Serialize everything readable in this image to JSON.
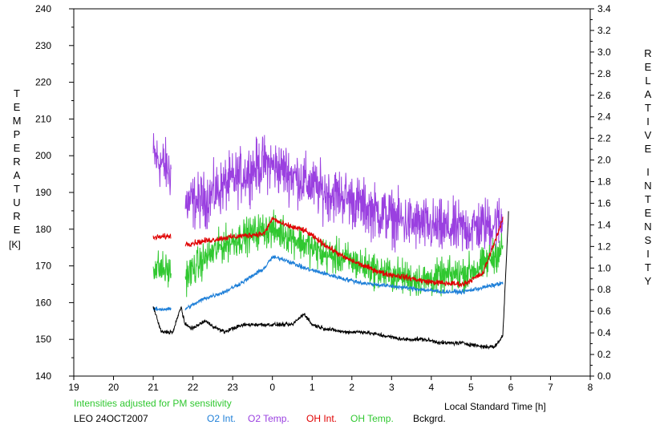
{
  "chart_data": {
    "type": "line",
    "left_axis_label_letters": "TEMPERATURE",
    "left_axis_unit": "[K]",
    "right_axis_label_letters_1": "RELATIVE",
    "right_axis_label_letters_2": "INTENSITY",
    "xlabel": "Local Standard Time [h]",
    "note": "Intensities adjusted for PM sensitivity",
    "station": "LEO 24OCT2007",
    "xlim": [
      19,
      32
    ],
    "x_tick_labels": [
      "19",
      "20",
      "21",
      "22",
      "23",
      "0",
      "1",
      "2",
      "3",
      "4",
      "5",
      "6",
      "7",
      "8"
    ],
    "ylim_left": [
      140,
      240
    ],
    "y_left_ticks": [
      "140",
      "150",
      "160",
      "170",
      "180",
      "190",
      "200",
      "210",
      "220",
      "230",
      "240"
    ],
    "ylim_right": [
      0,
      3.4
    ],
    "y_right_ticks": [
      "0.0",
      "0.2",
      "0.4",
      "0.6",
      "0.8",
      "1.0",
      "1.2",
      "1.4",
      "1.6",
      "1.8",
      "2.0",
      "2.2",
      "2.4",
      "2.6",
      "2.8",
      "3.0",
      "3.2",
      "3.4"
    ],
    "grid": false,
    "legend": [
      {
        "name": "O2 Int.",
        "color": "#1e7fd8"
      },
      {
        "name": "O2 Temp.",
        "color": "#9a40e0"
      },
      {
        "name": "OH Int.",
        "color": "#e00000"
      },
      {
        "name": "OH Temp.",
        "color": "#30c830"
      },
      {
        "name": "Bckgrd.",
        "color": "#000000"
      }
    ],
    "series": [
      {
        "key": "o2temp",
        "name": "O2 Temp.",
        "axis": "left",
        "color": "#9a40e0",
        "x": [
          21.0,
          21.5,
          21.8,
          22.3,
          22.8,
          23.3,
          23.8,
          24.3,
          24.8,
          25.3,
          25.8,
          26.3,
          26.8,
          27.3,
          27.8,
          28.3,
          28.8,
          29.3,
          29.8
        ],
        "y": [
          200,
          195,
          187,
          188,
          192,
          195,
          198,
          196,
          193,
          190,
          189,
          186,
          184,
          182,
          181,
          180,
          180,
          181,
          182
        ]
      },
      {
        "key": "ohtemp",
        "name": "OH Temp.",
        "axis": "left",
        "color": "#30c830",
        "x": [
          21.0,
          21.5,
          21.8,
          22.3,
          22.8,
          23.3,
          23.8,
          24.3,
          24.8,
          25.3,
          25.8,
          26.3,
          26.8,
          27.3,
          27.8,
          28.3,
          28.8,
          29.3,
          29.8
        ],
        "y": [
          170,
          168,
          167,
          172,
          176,
          178,
          180,
          179,
          176,
          173,
          172,
          170,
          168,
          167,
          166,
          167,
          168,
          170,
          175
        ]
      },
      {
        "key": "ohint",
        "name": "OH Int.",
        "axis": "right",
        "color": "#e00000",
        "x": [
          21.0,
          21.5,
          21.8,
          22.3,
          22.8,
          23.3,
          23.8,
          24.0,
          24.3,
          24.8,
          25.3,
          25.8,
          26.3,
          26.8,
          27.3,
          27.8,
          28.3,
          28.8,
          29.3,
          29.8
        ],
        "y": [
          1.28,
          1.3,
          1.22,
          1.25,
          1.28,
          1.3,
          1.32,
          1.46,
          1.4,
          1.35,
          1.22,
          1.1,
          1.02,
          0.95,
          0.92,
          0.88,
          0.86,
          0.85,
          0.95,
          1.45
        ]
      },
      {
        "key": "o2int",
        "name": "O2 Int.",
        "axis": "right",
        "color": "#1e7fd8",
        "x": [
          21.0,
          21.5,
          21.8,
          22.3,
          22.8,
          23.3,
          23.8,
          24.0,
          24.3,
          24.8,
          25.3,
          25.8,
          26.3,
          26.8,
          27.3,
          27.8,
          28.3,
          28.8,
          29.3,
          29.8
        ],
        "y": [
          0.62,
          0.62,
          0.62,
          0.72,
          0.78,
          0.88,
          1.0,
          1.1,
          1.08,
          1.0,
          0.95,
          0.9,
          0.86,
          0.84,
          0.82,
          0.8,
          0.78,
          0.78,
          0.82,
          0.86
        ]
      },
      {
        "key": "bckgrd",
        "name": "Bckgrd.",
        "axis": "left",
        "color": "#000000",
        "x": [
          21.0,
          21.2,
          21.5,
          21.7,
          21.8,
          22.0,
          22.3,
          22.6,
          22.8,
          23.0,
          23.3,
          23.5,
          24.0,
          24.5,
          24.8,
          25.0,
          25.3,
          25.8,
          26.3,
          26.8,
          27.3,
          27.8,
          28.3,
          28.8,
          29.3,
          29.6,
          29.8,
          29.95
        ],
        "y": [
          159,
          152,
          152,
          159,
          154,
          153,
          155,
          153,
          152,
          153,
          154,
          154,
          154,
          154,
          157,
          154,
          153,
          152,
          152,
          151,
          150,
          150,
          149,
          149,
          148,
          148,
          151,
          186
        ]
      }
    ]
  }
}
